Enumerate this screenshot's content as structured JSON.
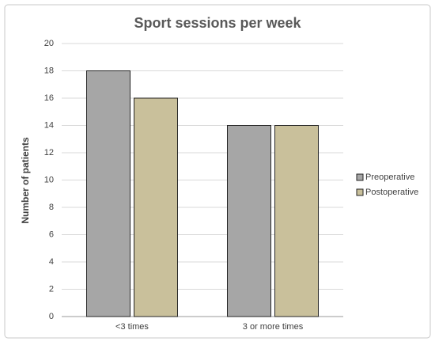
{
  "chart_data": {
    "type": "bar",
    "title": "Sport sessions per week",
    "y_label": "Number of patients",
    "categories": [
      "<3 times",
      "3 or more times"
    ],
    "series": [
      {
        "name": "Preoperative",
        "color": "#a6a6a6",
        "values": [
          18,
          14
        ]
      },
      {
        "name": "Postoperative",
        "color": "#c9c09b",
        "values": [
          16,
          14
        ]
      }
    ],
    "ylim": [
      0,
      20
    ],
    "yticks": [
      0,
      2,
      4,
      6,
      8,
      10,
      12,
      14,
      16,
      18,
      20
    ],
    "grid": true,
    "legend": "right"
  }
}
